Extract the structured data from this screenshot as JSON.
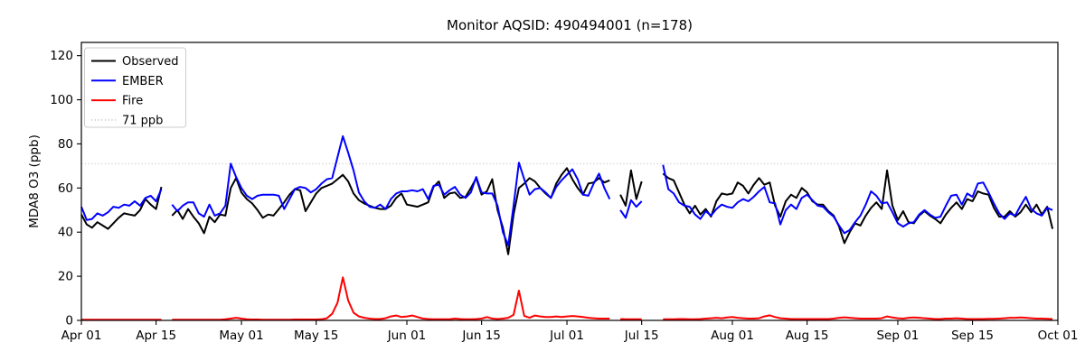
{
  "chart_data": {
    "type": "line",
    "title": "Monitor AQSID: 490494001 (n=178)",
    "ylabel": "MDA8 O3 (ppb)",
    "xlabel": "",
    "n_points": 178,
    "x_unit": "days since Apr 01 (daily values, Apr 01 – Sep 30; null = missing day)",
    "x_domain_days": 183,
    "ylim": [
      0,
      126
    ],
    "yticks": [
      0,
      20,
      40,
      60,
      80,
      100,
      120
    ],
    "xticks": [
      {
        "day": 0,
        "label": "Apr 01"
      },
      {
        "day": 14,
        "label": "Apr 15"
      },
      {
        "day": 30,
        "label": "May 01"
      },
      {
        "day": 44,
        "label": "May 15"
      },
      {
        "day": 61,
        "label": "Jun 01"
      },
      {
        "day": 75,
        "label": "Jun 15"
      },
      {
        "day": 91,
        "label": "Jul 01"
      },
      {
        "day": 105,
        "label": "Jul 15"
      },
      {
        "day": 122,
        "label": "Aug 01"
      },
      {
        "day": 136,
        "label": "Aug 15"
      },
      {
        "day": 153,
        "label": "Sep 01"
      },
      {
        "day": 167,
        "label": "Sep 15"
      },
      {
        "day": 183,
        "label": "Oct 01"
      }
    ],
    "grid": false,
    "legend_position": "upper left",
    "threshold": {
      "value": 71,
      "label": "71 ppb",
      "color": "#d3d3d3",
      "style": "dotted"
    },
    "series": [
      {
        "name": "Observed",
        "color": "#000000",
        "values": [
          48,
          43.5,
          42,
          44.5,
          43,
          41.5,
          44,
          46.5,
          48.5,
          48,
          47.5,
          50,
          55,
          52.5,
          50.5,
          60.5,
          null,
          47.5,
          50,
          46,
          50.5,
          47,
          44,
          39.5,
          47,
          44.5,
          48,
          47.5,
          60,
          64.5,
          58,
          55,
          53,
          50,
          46.5,
          48,
          47.5,
          50.5,
          53.5,
          57,
          59.5,
          59,
          49.5,
          53.5,
          57.5,
          60,
          61,
          62,
          64,
          66,
          63,
          57.5,
          54.5,
          53,
          52,
          51,
          50.5,
          50.5,
          52,
          55.5,
          57.5,
          52.5,
          52,
          51.5,
          52.5,
          53.5,
          60.5,
          63,
          55.5,
          57.5,
          58,
          55.5,
          56,
          60,
          64.5,
          57,
          58.5,
          64,
          50,
          42,
          30,
          48,
          60,
          62,
          64.5,
          63,
          60,
          57.5,
          55.5,
          62,
          66,
          69,
          64,
          60,
          57,
          62,
          62.5,
          64.5,
          62.5,
          63.5,
          null,
          57,
          52,
          68,
          55,
          63,
          null,
          null,
          null,
          66.5,
          64.5,
          63.5,
          58,
          52.5,
          48.5,
          52,
          48,
          50.5,
          47,
          54,
          57.5,
          57,
          57.5,
          62.5,
          61,
          57.5,
          61.5,
          64.5,
          61.5,
          62.5,
          52,
          47,
          54,
          57,
          55.5,
          60,
          58,
          54,
          52.5,
          52.5,
          49.5,
          47.5,
          42.5,
          35,
          40,
          44,
          43,
          47.5,
          51,
          53.5,
          50.5,
          68,
          52,
          45.5,
          49.5,
          44.5,
          44,
          47.5,
          49.5,
          47.5,
          46,
          44,
          48,
          51,
          53.5,
          50.5,
          55,
          54,
          58.5,
          57.5,
          57,
          51,
          47,
          47,
          49.5,
          47,
          49,
          52.5,
          49,
          52.5,
          48,
          51.5,
          41.5
        ]
      },
      {
        "name": "EMBER",
        "color": "#0000ff",
        "values": [
          51.5,
          45.5,
          46,
          48.5,
          47.5,
          49,
          51.5,
          51,
          52.5,
          52,
          54,
          52,
          55.5,
          56.5,
          54,
          59.5,
          null,
          52.5,
          49.5,
          52,
          53.5,
          53.5,
          48.5,
          47,
          52.5,
          47.5,
          48.5,
          52,
          71,
          65,
          60,
          56.5,
          55,
          56.5,
          57,
          57,
          57,
          56.5,
          50.5,
          55,
          59.5,
          60.5,
          60,
          58,
          59.5,
          62,
          64,
          64.5,
          74,
          83.5,
          76,
          68,
          58,
          54,
          51.5,
          51,
          52.5,
          50.5,
          55,
          57.5,
          58.5,
          58.5,
          59,
          58.5,
          59.5,
          55,
          61,
          61.5,
          57,
          59,
          60.5,
          57,
          55.5,
          58,
          65,
          58,
          57.5,
          57.5,
          52,
          40,
          34,
          52,
          71.5,
          64,
          57,
          59.5,
          60,
          58,
          55.5,
          60.5,
          63.5,
          66,
          68.5,
          64,
          57,
          56.5,
          62,
          66.5,
          60,
          55,
          null,
          50,
          46.5,
          54.5,
          51.5,
          54,
          null,
          null,
          null,
          70.5,
          59.5,
          57.5,
          53.5,
          52,
          51.5,
          48,
          46,
          49.5,
          47.5,
          50.5,
          52.5,
          51.5,
          51,
          53.5,
          55,
          54,
          56,
          58.5,
          60.5,
          53.5,
          53,
          43.5,
          50,
          52.5,
          50.5,
          55.5,
          57,
          54.5,
          52,
          51.5,
          49,
          47,
          43,
          39.5,
          41,
          44.5,
          47.5,
          52.5,
          58.5,
          56.5,
          53,
          53.5,
          49,
          44,
          42.5,
          44,
          44.5,
          48,
          50,
          48,
          46.5,
          47,
          52,
          56.5,
          57,
          52.5,
          57.5,
          56,
          62,
          62.5,
          58,
          53,
          48.5,
          46,
          48.5,
          47.5,
          52,
          56,
          50.5,
          48.5,
          47.5,
          51,
          50
        ]
      },
      {
        "name": "Fire",
        "color": "#ff0000",
        "values": [
          0.3,
          0.3,
          0.3,
          0.3,
          0.3,
          0.3,
          0.3,
          0.3,
          0.3,
          0.3,
          0.3,
          0.3,
          0.3,
          0.3,
          0.3,
          0.3,
          null,
          0.3,
          0.3,
          0.3,
          0.3,
          0.3,
          0.3,
          0.3,
          0.3,
          0.3,
          0.3,
          0.5,
          0.8,
          1.2,
          0.8,
          0.5,
          0.4,
          0.4,
          0.3,
          0.3,
          0.3,
          0.3,
          0.3,
          0.3,
          0.4,
          0.4,
          0.4,
          0.4,
          0.4,
          0.5,
          1,
          3,
          8,
          19.5,
          9,
          3.5,
          1.8,
          1.2,
          0.8,
          0.6,
          0.6,
          1,
          1.8,
          2.2,
          1.5,
          1.8,
          2.2,
          1.5,
          0.8,
          0.6,
          0.5,
          0.5,
          0.5,
          0.5,
          0.8,
          0.6,
          0.5,
          0.5,
          0.6,
          0.8,
          1.5,
          0.8,
          0.6,
          0.8,
          1.2,
          2.5,
          13.5,
          2,
          1.2,
          2.2,
          1.8,
          1.5,
          1.5,
          1.8,
          1.5,
          1.8,
          2,
          1.8,
          1.5,
          1.2,
          1,
          0.8,
          0.8,
          0.8,
          null,
          0.6,
          0.5,
          0.5,
          0.5,
          0.5,
          null,
          null,
          null,
          0.5,
          0.5,
          0.5,
          0.6,
          0.6,
          0.5,
          0.5,
          0.6,
          0.8,
          1,
          1.2,
          1,
          1.3,
          1.5,
          1.2,
          1,
          0.8,
          0.8,
          1,
          1.8,
          2.3,
          1.5,
          1,
          0.8,
          0.6,
          0.6,
          0.6,
          0.6,
          0.6,
          0.6,
          0.6,
          0.6,
          0.8,
          1.2,
          1.4,
          1.2,
          1,
          0.8,
          0.8,
          0.8,
          0.8,
          1,
          1.8,
          1.3,
          1,
          0.8,
          1.2,
          1.3,
          1.2,
          1,
          0.8,
          0.6,
          0.6,
          0.8,
          0.8,
          1,
          0.8,
          0.6,
          0.6,
          0.6,
          0.6,
          0.7,
          0.7,
          0.8,
          1,
          1.2,
          1.2,
          1.3,
          1.2,
          1,
          0.8,
          0.8,
          0.7,
          0.6
        ]
      }
    ]
  }
}
